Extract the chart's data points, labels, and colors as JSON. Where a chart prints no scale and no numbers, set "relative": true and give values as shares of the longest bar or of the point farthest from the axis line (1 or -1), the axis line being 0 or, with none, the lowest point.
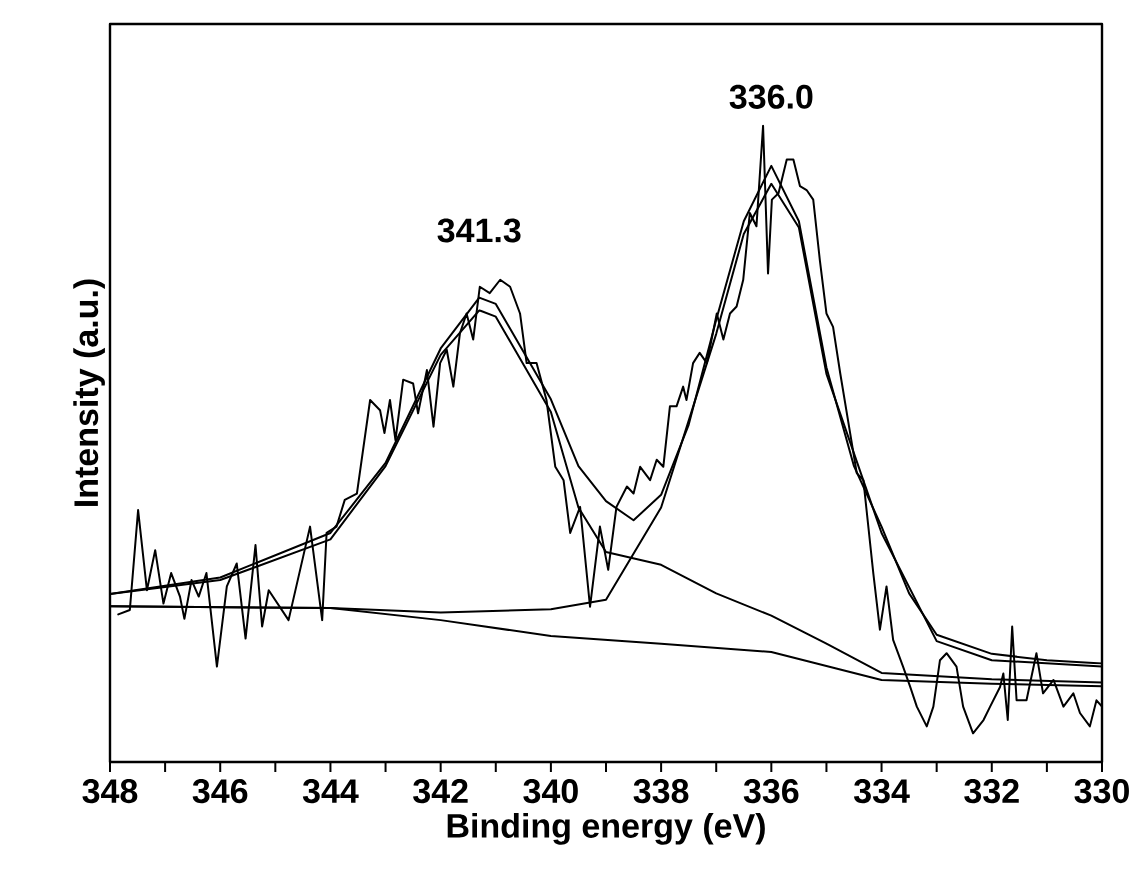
{
  "chart_data": {
    "type": "line",
    "relative": true,
    "xlabel": "Binding energy (eV)",
    "ylabel": "Intensity (a.u.)",
    "xlim": [
      348,
      330
    ],
    "xticks": [
      348,
      {
        "value": 347,
        "label": null
      },
      346,
      {
        "value": 345,
        "label": null
      },
      344,
      {
        "value": 343,
        "label": null
      },
      342,
      {
        "value": 341,
        "label": null
      },
      340,
      {
        "value": 339,
        "label": null
      },
      338,
      {
        "value": 337,
        "label": null
      },
      336,
      {
        "value": 335,
        "label": null
      },
      334,
      {
        "value": 333,
        "label": null
      },
      332,
      {
        "value": 331,
        "label": null
      },
      330
    ],
    "tick_labels": "x",
    "legend": false,
    "grid": false,
    "marker": "none",
    "line_style": "solid",
    "annotations": [
      {
        "text": "341.3",
        "x": 341.3,
        "y": 0.73
      },
      {
        "text": "336.0",
        "x": 336.0,
        "y": 0.94
      }
    ],
    "series": [
      {
        "color": "#000000",
        "x": [
          347.85,
          347.64,
          347.49,
          347.33,
          347.18,
          347.03,
          346.89,
          346.73,
          346.65,
          346.52,
          346.39,
          346.25,
          346.06,
          345.88,
          345.7,
          345.54,
          345.36,
          345.24,
          345.12,
          344.76,
          344.37,
          344.15,
          344.07,
          343.89,
          343.74,
          343.52,
          343.28,
          343.1,
          343.02,
          342.92,
          342.82,
          342.68,
          342.5,
          342.41,
          342.25,
          342.13,
          342.01,
          341.89,
          341.77,
          341.65,
          341.53,
          341.41,
          341.29,
          341.11,
          340.92,
          340.74,
          340.56,
          340.44,
          340.26,
          340.08,
          339.92,
          339.77,
          339.65,
          339.47,
          339.29,
          339.11,
          338.96,
          338.81,
          338.62,
          338.5,
          338.38,
          338.2,
          338.08,
          337.96,
          337.84,
          337.72,
          337.6,
          337.54,
          337.42,
          337.3,
          337.17,
          336.99,
          336.87,
          336.75,
          336.63,
          336.51,
          336.39,
          336.27,
          336.15,
          336.06,
          335.99,
          335.87,
          335.72,
          335.6,
          335.48,
          335.36,
          335.24,
          335.12,
          335.0,
          334.88,
          334.75,
          334.57,
          334.45,
          334.33,
          334.15,
          334.03,
          333.91,
          333.79,
          333.61,
          333.48,
          333.36,
          333.18,
          333.06,
          332.94,
          332.82,
          332.64,
          332.52,
          332.34,
          332.15,
          332.03,
          331.85,
          331.79,
          331.71,
          331.63,
          331.55,
          331.37,
          331.19,
          331.07,
          330.88,
          330.7,
          330.52,
          330.4,
          330.22,
          330.1,
          330.0
        ],
        "values": [
          0.232,
          0.239,
          0.396,
          0.27,
          0.333,
          0.249,
          0.297,
          0.26,
          0.225,
          0.286,
          0.26,
          0.297,
          0.15,
          0.276,
          0.312,
          0.194,
          0.341,
          0.213,
          0.27,
          0.223,
          0.37,
          0.223,
          0.36,
          0.37,
          0.412,
          0.422,
          0.569,
          0.553,
          0.517,
          0.569,
          0.506,
          0.601,
          0.595,
          0.548,
          0.616,
          0.527,
          0.627,
          0.648,
          0.59,
          0.674,
          0.705,
          0.664,
          0.747,
          0.737,
          0.758,
          0.747,
          0.705,
          0.627,
          0.627,
          0.569,
          0.464,
          0.443,
          0.36,
          0.401,
          0.244,
          0.37,
          0.302,
          0.401,
          0.433,
          0.422,
          0.464,
          0.443,
          0.475,
          0.464,
          0.559,
          0.559,
          0.59,
          0.569,
          0.627,
          0.643,
          0.627,
          0.705,
          0.664,
          0.705,
          0.716,
          0.758,
          0.863,
          0.842,
          1.0,
          0.768,
          0.884,
          0.894,
          0.947,
          0.947,
          0.905,
          0.899,
          0.884,
          0.789,
          0.705,
          0.684,
          0.611,
          0.517,
          0.454,
          0.443,
          0.297,
          0.208,
          0.276,
          0.192,
          0.15,
          0.118,
          0.087,
          0.056,
          0.087,
          0.16,
          0.171,
          0.15,
          0.087,
          0.045,
          0.066,
          0.087,
          0.118,
          0.139,
          0.066,
          0.213,
          0.097,
          0.097,
          0.171,
          0.108,
          0.129,
          0.087,
          0.108,
          0.077,
          0.056,
          0.097,
          0.087
        ]
      },
      {
        "color": "#000000",
        "x": [
          348,
          346,
          344,
          343,
          342,
          341.3,
          341,
          340,
          339.5,
          339,
          338.5,
          338,
          337.5,
          337,
          336.5,
          336,
          335.5,
          335,
          334.5,
          334,
          333.5,
          333,
          332,
          331,
          330
        ],
        "values": [
          0.264,
          0.29,
          0.36,
          0.47,
          0.65,
          0.73,
          0.72,
          0.57,
          0.465,
          0.41,
          0.38,
          0.42,
          0.53,
          0.695,
          0.85,
          0.937,
          0.85,
          0.62,
          0.465,
          0.37,
          0.265,
          0.2,
          0.17,
          0.16,
          0.155
        ]
      },
      {
        "color": "#000000",
        "x": [
          348,
          346,
          344,
          343,
          342,
          341.3,
          341,
          340,
          339.5,
          339,
          338,
          337,
          336,
          335,
          334,
          332,
          330
        ],
        "values": [
          0.264,
          0.286,
          0.35,
          0.465,
          0.64,
          0.71,
          0.7,
          0.55,
          0.4,
          0.33,
          0.31,
          0.265,
          0.23,
          0.186,
          0.14,
          0.13,
          0.125
        ]
      },
      {
        "color": "#000000",
        "x": [
          348,
          344,
          342,
          340,
          339,
          338,
          337,
          336.5,
          336,
          335.5,
          335,
          334,
          333,
          332,
          330
        ],
        "values": [
          0.245,
          0.242,
          0.235,
          0.24,
          0.255,
          0.4,
          0.673,
          0.83,
          0.909,
          0.84,
          0.61,
          0.36,
          0.19,
          0.16,
          0.15
        ]
      },
      {
        "color": "#000000",
        "x": [
          348,
          344,
          342,
          340,
          338,
          336,
          335,
          334,
          332,
          330
        ],
        "values": [
          0.245,
          0.242,
          0.223,
          0.198,
          0.186,
          0.173,
          0.151,
          0.129,
          0.123,
          0.119
        ]
      }
    ]
  }
}
